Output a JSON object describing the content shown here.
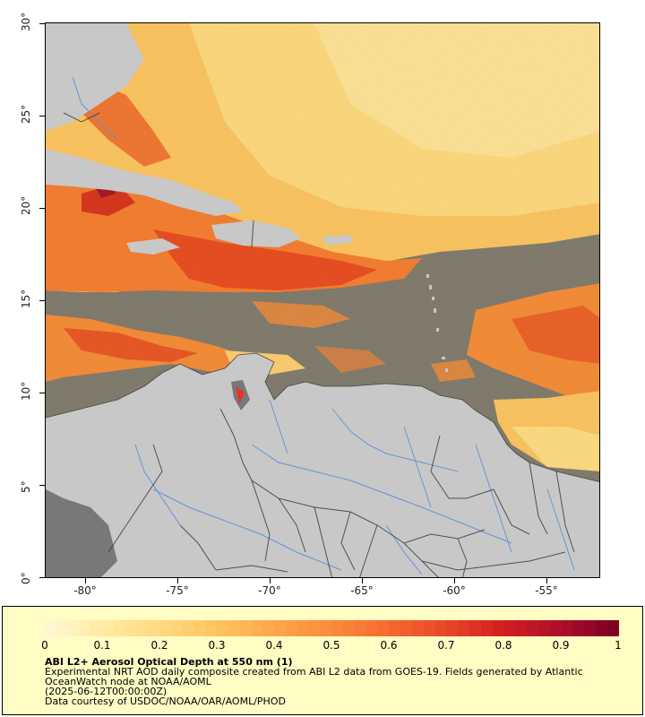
{
  "map": {
    "lat_ticks": [
      "0°",
      "5°",
      "10°",
      "15°",
      "20°",
      "25°",
      "30°"
    ],
    "lon_ticks": [
      "-80°",
      "-75°",
      "-70°",
      "-65°",
      "-60°",
      "-55°"
    ],
    "lon_range": [
      -82.2,
      -52.6
    ],
    "lat_range": [
      0,
      30
    ],
    "land_color": "#c8c8c8",
    "no_data_color": "#787878",
    "border_color": "#333333",
    "river_color": "#5b8fd6"
  },
  "colorbar": {
    "labels": [
      "0",
      "0.1",
      "0.2",
      "0.3",
      "0.4",
      "0.5",
      "0.6",
      "0.7",
      "0.8",
      "0.9",
      "1"
    ],
    "colors": [
      "#fff7d0",
      "#ffeaa0",
      "#ffd880",
      "#fec25e",
      "#fda64a",
      "#fb8a3c",
      "#f46a30",
      "#e84828",
      "#d42020",
      "#b0102a",
      "#800026"
    ]
  },
  "caption": {
    "title": "ABI L2+ Aerosol Optical Depth at 550 nm (1)",
    "desc1": "Experimental NRT AOD daily composite created from ABI L2 data from GOES-19. Fields generated by Atlantic",
    "desc2": "OceanWatch node at NOAA/AOML",
    "date": "(2025-06-12T00:00:00Z)",
    "credit": "Data courtesy of USDOC/NOAA/OAR/AOML/PHOD"
  }
}
